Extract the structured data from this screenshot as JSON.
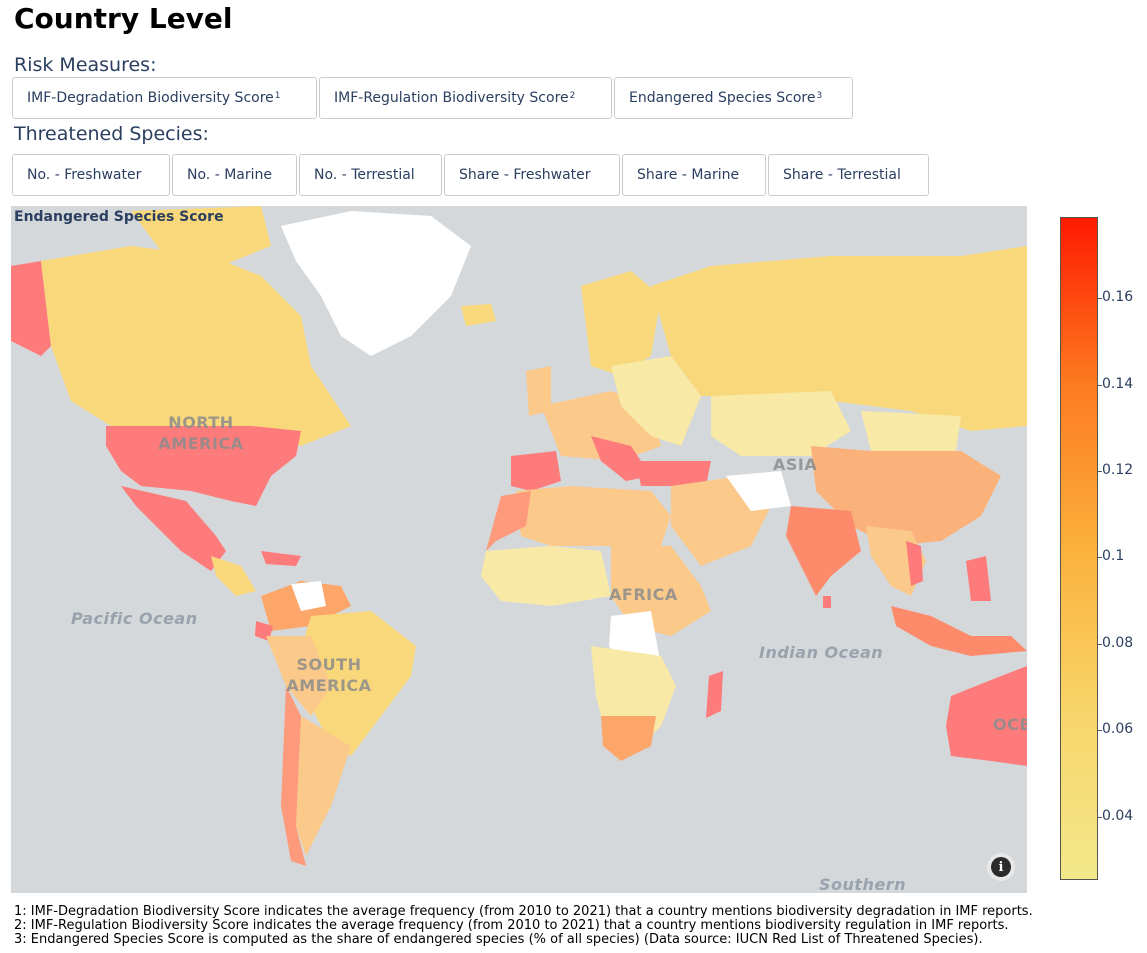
{
  "page_title": "Country Level",
  "risk_measures": {
    "label": "Risk Measures:",
    "buttons": [
      {
        "label": "IMF-Degradation Biodiversity Score",
        "sup": "1"
      },
      {
        "label": "IMF-Regulation Biodiversity Score",
        "sup": "2"
      },
      {
        "label": "Endangered Species Score",
        "sup": "3"
      }
    ]
  },
  "threatened_species": {
    "label": "Threatened Species:",
    "buttons": [
      "No. - Freshwater",
      "No. - Marine",
      "No. - Terrestial",
      "Share - Freshwater",
      "Share - Marine",
      "Share - Terrestial"
    ]
  },
  "map": {
    "title": "Endangered Species Score",
    "ocean_labels": [
      "Pacific Ocean",
      "Indian Ocean",
      "Southern"
    ],
    "continent_labels": [
      "NORTH AMERICA",
      "SOUTH AMERICA",
      "AFRICA",
      "ASIA",
      "OCE"
    ],
    "info_icon": "info-icon",
    "colors": {
      "ocean": "#d5d8db",
      "no_data": "#ffffff",
      "low": "#f2e88a",
      "mid": "#fbb13c",
      "high": "#ff1a00",
      "red": "#fd7b7b"
    }
  },
  "colorbar": {
    "ticks": [
      "0.16",
      "0.14",
      "0.12",
      "0.1",
      "0.08",
      "0.06",
      "0.04"
    ]
  },
  "footnotes": [
    "1: IMF-Degradation Biodiversity Score indicates the average frequency (from 2010 to 2021) that a country mentions biodiversity degradation in IMF reports.",
    "2: IMF-Regulation Biodiversity Score indicates the average frequency (from 2010 to 2021) that a country mentions biodiversity regulation in IMF reports.",
    "3: Endangered Species Score is computed as the share of endangered species (% of all species) (Data source: IUCN Red List of Threatened Species)."
  ]
}
